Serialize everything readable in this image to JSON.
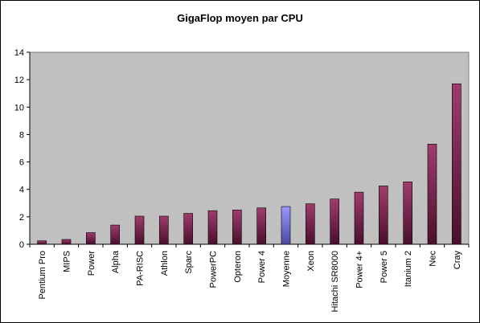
{
  "chart_data": {
    "type": "bar",
    "title": "GigaFlop moyen par CPU",
    "xlabel": "",
    "ylabel": "",
    "ylim": [
      0,
      14
    ],
    "yticks": [
      0,
      2,
      4,
      6,
      8,
      10,
      12,
      14
    ],
    "grid": false,
    "legend": "none",
    "plot_background": "#c0c0c0",
    "bar_color_top": "#a03c6c",
    "bar_color_bottom": "#4a0f2c",
    "highlight_color_top": "#9999ff",
    "highlight_color_bottom": "#4a4aa0",
    "highlight_category": "Moyenne",
    "categories": [
      "Pentium Pro",
      "MIPS",
      "Power",
      "Alpha",
      "PA-RISC",
      "Athlon",
      "Sparc",
      "PowerPC",
      "Opteron",
      "Power 4",
      "Moyenne",
      "Xeon",
      "Hitachi SR8000",
      "Power 4+",
      "Power 5",
      "Itanium 2",
      "Nec",
      "Cray"
    ],
    "values": [
      0.25,
      0.35,
      0.85,
      1.4,
      2.05,
      2.05,
      2.25,
      2.45,
      2.5,
      2.65,
      2.75,
      2.95,
      3.3,
      3.8,
      4.25,
      4.55,
      7.3,
      11.7
    ]
  }
}
